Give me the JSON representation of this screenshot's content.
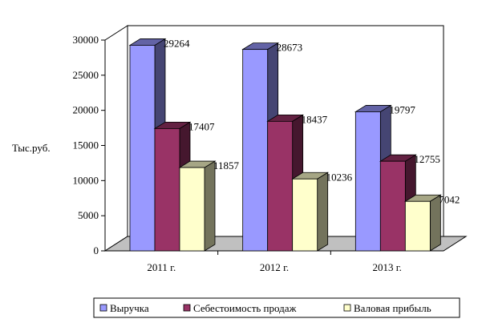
{
  "chart_data": {
    "type": "bar",
    "title": "",
    "xlabel": "",
    "ylabel": "Тыс.руб.",
    "ylim": [
      0,
      30000
    ],
    "yticks": [
      0,
      5000,
      10000,
      15000,
      20000,
      25000,
      30000
    ],
    "categories": [
      "2011 г.",
      "2012 г.",
      "2013 г."
    ],
    "series": [
      {
        "name": "Выручка",
        "values": [
          29264,
          28673,
          19797
        ],
        "color": "#9999ff"
      },
      {
        "name": "Себестоимость продаж",
        "values": [
          17407,
          18437,
          12755
        ],
        "color": "#993366"
      },
      {
        "name": "Валовая прибыль",
        "values": [
          11857,
          10236,
          7042
        ],
        "color": "#ffffcc"
      }
    ],
    "grid": false,
    "style": "3d",
    "legend_position": "bottom"
  }
}
